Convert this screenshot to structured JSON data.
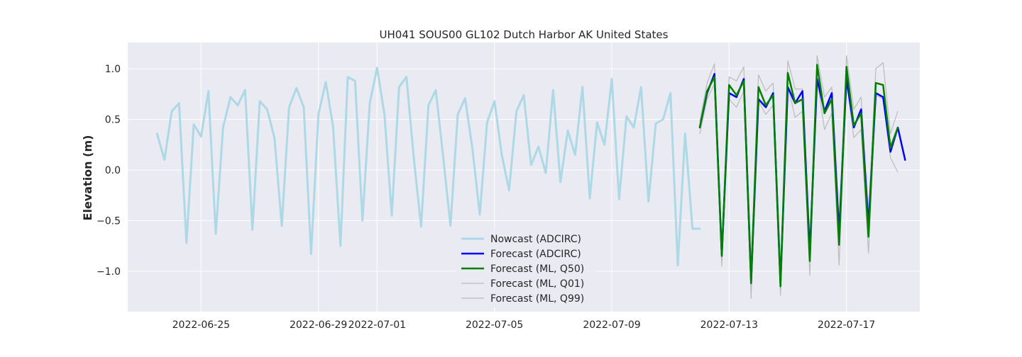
{
  "chart_data": {
    "type": "line",
    "title": "UH041 SOUS00 GL102 Dutch Harbor AK United States",
    "xlabel": "",
    "ylabel": "Elevation (m)",
    "xlim": [
      "2022-06-22T12:00",
      "2022-07-19T12:00"
    ],
    "ylim": [
      -1.4,
      1.26
    ],
    "x_ticks": [
      "2022-06-25",
      "2022-06-29",
      "2022-07-01",
      "2022-07-05",
      "2022-07-09",
      "2022-07-13",
      "2022-07-17"
    ],
    "y_ticks": [
      -1.0,
      -0.5,
      0.0,
      0.5,
      1.0
    ],
    "y_tick_labels": [
      "−1.0",
      "−0.5",
      "0.0",
      "0.5",
      "1.0"
    ],
    "grid": true,
    "legend_position": "lower-center",
    "series": [
      {
        "name": "Nowcast (ADCIRC)",
        "color": "#add8e6",
        "x": [
          "2022-06-23T12:00",
          "2022-06-23T18:00",
          "2022-06-24T00:00",
          "2022-06-24T06:00",
          "2022-06-24T12:00",
          "2022-06-24T18:00",
          "2022-06-25T00:00",
          "2022-06-25T06:00",
          "2022-06-25T12:00",
          "2022-06-25T18:00",
          "2022-06-26T00:00",
          "2022-06-26T06:00",
          "2022-06-26T12:00",
          "2022-06-26T18:00",
          "2022-06-27T00:00",
          "2022-06-27T06:00",
          "2022-06-27T12:00",
          "2022-06-27T18:00",
          "2022-06-28T00:00",
          "2022-06-28T06:00",
          "2022-06-28T12:00",
          "2022-06-28T18:00",
          "2022-06-29T00:00",
          "2022-06-29T06:00",
          "2022-06-29T12:00",
          "2022-06-29T18:00",
          "2022-06-30T00:00",
          "2022-06-30T06:00",
          "2022-06-30T12:00",
          "2022-06-30T18:00",
          "2022-07-01T00:00",
          "2022-07-01T06:00",
          "2022-07-01T12:00",
          "2022-07-01T18:00",
          "2022-07-02T00:00",
          "2022-07-02T06:00",
          "2022-07-02T12:00",
          "2022-07-02T18:00",
          "2022-07-03T00:00",
          "2022-07-03T06:00",
          "2022-07-03T12:00",
          "2022-07-03T18:00",
          "2022-07-04T00:00",
          "2022-07-04T06:00",
          "2022-07-04T12:00",
          "2022-07-04T18:00",
          "2022-07-05T00:00",
          "2022-07-05T06:00",
          "2022-07-05T12:00",
          "2022-07-05T18:00",
          "2022-07-06T00:00",
          "2022-07-06T06:00",
          "2022-07-06T12:00",
          "2022-07-06T18:00",
          "2022-07-07T00:00",
          "2022-07-07T06:00",
          "2022-07-07T12:00",
          "2022-07-07T18:00",
          "2022-07-08T00:00",
          "2022-07-08T06:00",
          "2022-07-08T12:00",
          "2022-07-08T18:00",
          "2022-07-09T00:00",
          "2022-07-09T06:00",
          "2022-07-09T12:00",
          "2022-07-09T18:00",
          "2022-07-10T00:00",
          "2022-07-10T06:00",
          "2022-07-10T12:00",
          "2022-07-10T18:00",
          "2022-07-11T00:00",
          "2022-07-11T06:00",
          "2022-07-11T12:00",
          "2022-07-11T18:00",
          "2022-07-12T00:00"
        ],
        "values": [
          0.36,
          0.1,
          0.58,
          0.66,
          -0.72,
          0.45,
          0.33,
          0.78,
          -0.63,
          0.42,
          0.72,
          0.64,
          0.79,
          -0.59,
          0.68,
          0.6,
          0.32,
          -0.55,
          0.62,
          0.81,
          0.62,
          -0.83,
          0.55,
          0.87,
          0.43,
          -0.75,
          0.92,
          0.88,
          -0.5,
          0.66,
          1.01,
          0.55,
          -0.45,
          0.82,
          0.92,
          0.12,
          -0.56,
          0.64,
          0.79,
          0.14,
          -0.55,
          0.55,
          0.71,
          0.21,
          -0.44,
          0.47,
          0.68,
          0.15,
          -0.2,
          0.58,
          0.74,
          0.05,
          0.23,
          -0.03,
          0.79,
          -0.12,
          0.39,
          0.15,
          0.82,
          -0.28,
          0.47,
          0.25,
          0.9,
          -0.29,
          0.53,
          0.42,
          0.82,
          -0.31,
          0.46,
          0.5,
          0.76,
          -0.94,
          0.36,
          -0.58,
          -0.58
        ]
      },
      {
        "name": "Forecast (ADCIRC)",
        "color": "#0000ff",
        "x": [
          "2022-07-12T00:00",
          "2022-07-12T06:00",
          "2022-07-12T12:00",
          "2022-07-12T18:00",
          "2022-07-13T00:00",
          "2022-07-13T06:00",
          "2022-07-13T12:00",
          "2022-07-13T18:00",
          "2022-07-14T00:00",
          "2022-07-14T06:00",
          "2022-07-14T12:00",
          "2022-07-14T18:00",
          "2022-07-15T00:00",
          "2022-07-15T06:00",
          "2022-07-15T12:00",
          "2022-07-15T18:00",
          "2022-07-16T00:00",
          "2022-07-16T06:00",
          "2022-07-16T12:00",
          "2022-07-16T18:00",
          "2022-07-17T00:00",
          "2022-07-17T06:00",
          "2022-07-17T12:00",
          "2022-07-17T18:00",
          "2022-07-18T00:00",
          "2022-07-18T06:00",
          "2022-07-18T12:00",
          "2022-07-18T18:00",
          "2022-07-19T00:00"
        ],
        "values": [
          0.42,
          0.76,
          0.95,
          -0.84,
          0.76,
          0.72,
          0.9,
          -1.1,
          0.7,
          0.62,
          0.76,
          -1.12,
          0.82,
          0.66,
          0.78,
          -0.82,
          0.9,
          0.58,
          0.76,
          -0.62,
          0.9,
          0.42,
          0.6,
          -0.55,
          0.76,
          0.72,
          0.18,
          0.42,
          0.1
        ]
      },
      {
        "name": "Forecast (ML, Q50)",
        "color": "#008000",
        "x": [
          "2022-07-12T00:00",
          "2022-07-12T06:00",
          "2022-07-12T12:00",
          "2022-07-12T18:00",
          "2022-07-13T00:00",
          "2022-07-13T06:00",
          "2022-07-13T12:00",
          "2022-07-13T18:00",
          "2022-07-14T00:00",
          "2022-07-14T06:00",
          "2022-07-14T12:00",
          "2022-07-14T18:00",
          "2022-07-15T00:00",
          "2022-07-15T06:00",
          "2022-07-15T12:00",
          "2022-07-15T18:00",
          "2022-07-16T00:00",
          "2022-07-16T06:00",
          "2022-07-16T12:00",
          "2022-07-16T18:00",
          "2022-07-17T00:00",
          "2022-07-17T06:00",
          "2022-07-17T12:00",
          "2022-07-17T18:00",
          "2022-07-18T00:00",
          "2022-07-18T06:00",
          "2022-07-18T12:00",
          "2022-07-18T18:00"
        ],
        "values": [
          0.42,
          0.78,
          0.92,
          -0.85,
          0.84,
          0.74,
          0.88,
          -1.12,
          0.82,
          0.64,
          0.74,
          -1.15,
          0.96,
          0.66,
          0.7,
          -0.9,
          1.04,
          0.56,
          0.7,
          -0.74,
          1.02,
          0.44,
          0.56,
          -0.66,
          0.86,
          0.84,
          0.22,
          0.42
        ]
      },
      {
        "name": "Forecast (ML, Q01)",
        "color": "#bbbbbb",
        "x": [
          "2022-07-12T00:00",
          "2022-07-12T06:00",
          "2022-07-12T12:00",
          "2022-07-12T18:00",
          "2022-07-13T00:00",
          "2022-07-13T06:00",
          "2022-07-13T12:00",
          "2022-07-13T18:00",
          "2022-07-14T00:00",
          "2022-07-14T06:00",
          "2022-07-14T12:00",
          "2022-07-14T18:00",
          "2022-07-15T00:00",
          "2022-07-15T06:00",
          "2022-07-15T12:00",
          "2022-07-15T18:00",
          "2022-07-16T00:00",
          "2022-07-16T06:00",
          "2022-07-16T12:00",
          "2022-07-16T18:00",
          "2022-07-17T00:00",
          "2022-07-17T06:00",
          "2022-07-17T12:00",
          "2022-07-17T18:00",
          "2022-07-18T00:00",
          "2022-07-18T06:00",
          "2022-07-18T12:00",
          "2022-07-18T18:00"
        ],
        "values": [
          0.36,
          0.7,
          0.85,
          -0.95,
          0.7,
          0.62,
          0.78,
          -1.27,
          0.68,
          0.55,
          0.64,
          -1.24,
          0.84,
          0.52,
          0.58,
          -1.04,
          0.9,
          0.4,
          0.56,
          -0.94,
          0.9,
          0.32,
          0.4,
          -0.82,
          0.74,
          0.7,
          0.12,
          -0.02
        ]
      },
      {
        "name": "Forecast (ML, Q99)",
        "color": "#bbbbbb",
        "x": [
          "2022-07-12T00:00",
          "2022-07-12T06:00",
          "2022-07-12T12:00",
          "2022-07-12T18:00",
          "2022-07-13T00:00",
          "2022-07-13T06:00",
          "2022-07-13T12:00",
          "2022-07-13T18:00",
          "2022-07-14T00:00",
          "2022-07-14T06:00",
          "2022-07-14T12:00",
          "2022-07-14T18:00",
          "2022-07-15T00:00",
          "2022-07-15T06:00",
          "2022-07-15T12:00",
          "2022-07-15T18:00",
          "2022-07-16T00:00",
          "2022-07-16T06:00",
          "2022-07-16T12:00",
          "2022-07-16T18:00",
          "2022-07-17T00:00",
          "2022-07-17T06:00",
          "2022-07-17T12:00",
          "2022-07-17T18:00",
          "2022-07-18T00:00",
          "2022-07-18T06:00",
          "2022-07-18T12:00",
          "2022-07-18T18:00"
        ],
        "values": [
          0.48,
          0.86,
          1.05,
          -0.78,
          0.92,
          0.88,
          1.02,
          -0.92,
          0.94,
          0.78,
          0.86,
          -0.98,
          1.08,
          0.8,
          0.8,
          -0.72,
          1.13,
          0.72,
          0.82,
          -0.52,
          1.13,
          0.6,
          0.72,
          -0.44,
          1.0,
          1.06,
          0.36,
          0.58
        ]
      }
    ]
  }
}
